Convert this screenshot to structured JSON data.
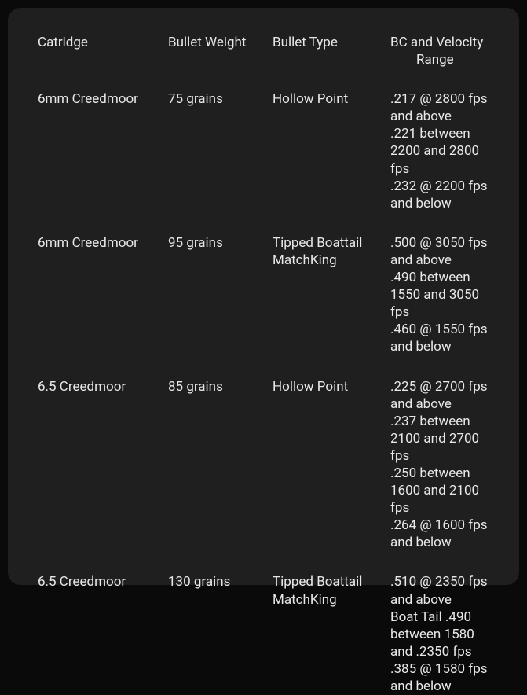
{
  "table": {
    "headers": {
      "cartridge": "Catridge",
      "weight": "Bullet Weight",
      "type": "Bullet Type",
      "bc_line1": "BC and Velocity",
      "bc_line2": "Range"
    },
    "rows": [
      {
        "cartridge": "6mm Creedmoor",
        "weight": "75 grains",
        "type": "Hollow Point",
        "bc": [
          ".217 @ 2800 fps and above",
          ".221 between 2200 and 2800 fps",
          ".232 @ 2200 fps and below"
        ]
      },
      {
        "cartridge": "6mm Creedmoor",
        "weight": "95 grains",
        "type": "Tipped Boattail MatchKing",
        "bc": [
          ".500 @ 3050 fps and above",
          ".490 between 1550 and 3050 fps",
          ".460 @ 1550 fps and below"
        ]
      },
      {
        "cartridge": "6.5 Creedmoor",
        "weight": "85 grains",
        "type": "Hollow Point",
        "bc": [
          ".225 @ 2700 fps and above",
          ".237 between 2100 and 2700 fps",
          ".250 between 1600 and 2100 fps",
          ".264 @ 1600 fps and below"
        ]
      },
      {
        "cartridge": "6.5 Creedmoor",
        "weight": "130 grains",
        "type": "Tipped Boattail MatchKing",
        "bc": [
          ".510 @ 2350 fps and above",
          "Boat Tail .490 between 1580 and .2350 fps",
          ".385 @ 1580 fps and below"
        ]
      }
    ]
  },
  "colors": {
    "page_bg": "#0a0a0a",
    "container_bg": "#1f1f1f",
    "text": "#e8e8e8"
  },
  "typography": {
    "font_size": 17,
    "line_height": 1.3,
    "font_family": "-apple-system, BlinkMacSystemFont, 'Segoe UI', Roboto, Helvetica, Arial, sans-serif"
  },
  "layout": {
    "container_width": 651,
    "container_height": 734,
    "border_radius": 16,
    "col_widths": {
      "cartridge": 166,
      "weight": 133,
      "type": 150
    }
  }
}
